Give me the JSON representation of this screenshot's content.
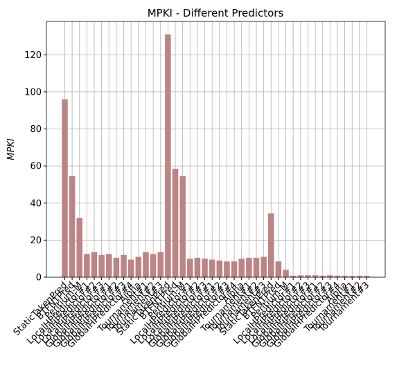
{
  "chart_data": {
    "type": "bar",
    "title": "MPKI - Different Predictors",
    "ylabel": "MPKI",
    "categories": [
      "StaticTakenPred",
      "BTFNTPred",
      "Pentium-M",
      "LocalHPredictor#1",
      "LocalHPredictor#2",
      "LocalHPredictor#3",
      "GlobalHPredictor#1",
      "GlobalHPredictor#2",
      "GlobalHPredictor#3",
      "GlobalHPredictor#4",
      "Alpha",
      "Tournament#1",
      "Tournament#2",
      "Tournament#3",
      "StaticTakenPred",
      "BTFNTPred",
      "Pentium-M",
      "LocalHPredictor#1",
      "LocalHPredictor#2",
      "LocalHPredictor#3",
      "GlobalHPredictor#1",
      "GlobalHPredictor#2",
      "GlobalHPredictor#3",
      "GlobalHPredictor#4",
      "Alpha",
      "Tournament#1",
      "Tournament#2",
      "Tournament#3",
      "StaticTakenPred",
      "BTFNTPred",
      "Pentium-M",
      "LocalHPredictor#1",
      "LocalHPredictor#2",
      "LocalHPredictor#3",
      "GlobalHPredictor#1",
      "GlobalHPredictor#2",
      "GlobalHPredictor#3",
      "GlobalHPredictor#4",
      "Alpha",
      "Tournament#1",
      "Tournament#2",
      "Tournament#3"
    ],
    "values": [
      96,
      54.5,
      32,
      12.5,
      13.5,
      12,
      12.5,
      10.5,
      12,
      9.5,
      11,
      13.5,
      12.5,
      13.5,
      131,
      58.5,
      54.5,
      10,
      10.5,
      10,
      9.5,
      9,
      8.5,
      8.5,
      10,
      10.5,
      10.5,
      11,
      34.5,
      8.5,
      4,
      0.8,
      1,
      1,
      1,
      0.8,
      1,
      0.8,
      0.8,
      0.7,
      0.8,
      0.7
    ],
    "color": "#bc8484",
    "ylim": [
      0,
      138
    ],
    "yticks": [
      0,
      20,
      40,
      60,
      80,
      100,
      120
    ],
    "grid": true
  }
}
